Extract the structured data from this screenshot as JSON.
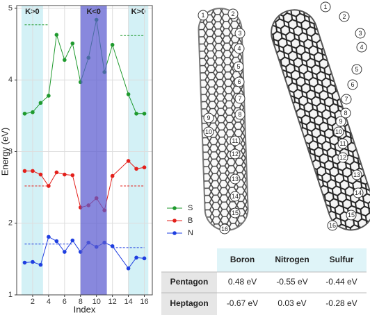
{
  "chart_data": {
    "type": "line",
    "x": [
      1,
      2,
      3,
      4,
      5,
      6,
      7,
      8,
      9,
      10,
      11,
      12,
      14,
      15,
      16
    ],
    "series": [
      {
        "name": "S",
        "color": "#1f9a2e",
        "values": [
          3.53,
          3.55,
          3.68,
          3.78,
          4.63,
          4.28,
          4.51,
          3.97,
          4.31,
          4.84,
          4.11,
          4.49,
          3.8,
          3.53,
          3.53
        ]
      },
      {
        "name": "B",
        "color": "#e3201b",
        "values": [
          2.73,
          2.73,
          2.68,
          2.52,
          2.71,
          2.68,
          2.67,
          2.22,
          2.25,
          2.35,
          2.18,
          2.66,
          2.87,
          2.76,
          2.78
        ]
      },
      {
        "name": "N",
        "color": "#1f3fe0",
        "values": [
          1.45,
          1.46,
          1.42,
          1.81,
          1.75,
          1.6,
          1.76,
          1.6,
          1.73,
          1.67,
          1.73,
          1.68,
          1.37,
          1.52,
          1.51
        ]
      }
    ],
    "xlabel": "Index",
    "ylabel": "Energy (eV)",
    "xlim": [
      0,
      17
    ],
    "ylim": [
      1,
      5
    ],
    "xticks": [
      2,
      4,
      6,
      8,
      10,
      12,
      14,
      16
    ],
    "yticks": [
      1,
      2,
      3,
      4,
      5
    ],
    "grid": true,
    "legend": "right",
    "regions": [
      {
        "x": [
          0.6,
          3.3
        ],
        "label": "K>0",
        "color": "#d3f1f6"
      },
      {
        "x": [
          8,
          11.3
        ],
        "label": "K<0",
        "color": "#5a5ad0"
      },
      {
        "x": [
          14,
          16.5
        ],
        "label": "K>0",
        "color": "#d3f1f6"
      }
    ],
    "reference_lines": [
      {
        "x": [
          1,
          4
        ],
        "y": 4.77,
        "color": "#1f9a2e"
      },
      {
        "x": [
          13,
          16
        ],
        "y": 4.62,
        "color": "#1f9a2e"
      },
      {
        "x": [
          1,
          4
        ],
        "y": 2.52,
        "color": "#e3201b"
      },
      {
        "x": [
          13,
          16
        ],
        "y": 2.52,
        "color": "#e3201b"
      },
      {
        "x": [
          1,
          7
        ],
        "y": 1.71,
        "color": "#1f3fe0"
      },
      {
        "x": [
          12,
          16
        ],
        "y": 1.66,
        "color": "#1f3fe0"
      }
    ]
  },
  "structure": {
    "site_labels": [
      1,
      2,
      3,
      4,
      5,
      6,
      7,
      8,
      9,
      10,
      11,
      12,
      13,
      14,
      15,
      16
    ]
  },
  "table": {
    "columns": [
      "Boron",
      "Nitrogen",
      "Sulfur"
    ],
    "rows": [
      {
        "label": "Pentagon",
        "cells": [
          "0.48 eV",
          "-0.55 eV",
          "-0.44 eV"
        ]
      },
      {
        "label": "Heptagon",
        "cells": [
          "-0.67 eV",
          "0.03 eV",
          "-0.28 eV"
        ]
      }
    ]
  }
}
